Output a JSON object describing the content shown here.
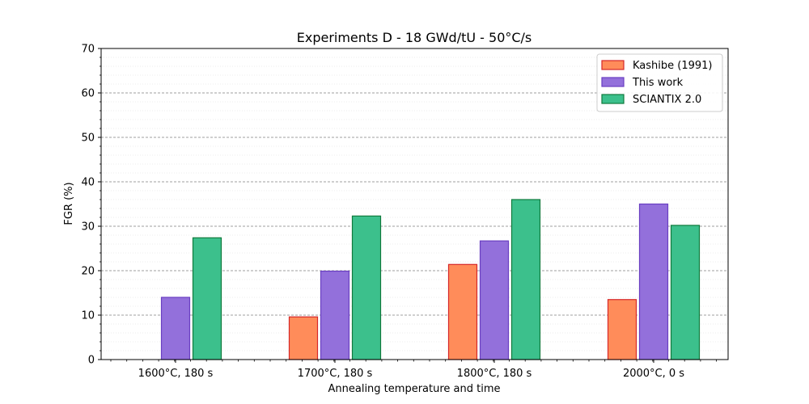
{
  "chart_data": {
    "type": "bar",
    "title": "Experiments D - 18 GWd/tU - 50°C/s",
    "xlabel": "Annealing temperature and time",
    "ylabel": "FGR (%)",
    "ylim": [
      0,
      70
    ],
    "yticks": [
      0,
      10,
      20,
      30,
      40,
      50,
      60,
      70
    ],
    "grid": "horizontal dashed major, dotted minor",
    "legend_position": "top-right",
    "categories": [
      "1600°C, 180 s",
      "1700°C, 180 s",
      "1800°C, 180 s",
      "2000°C, 0 s"
    ],
    "series": [
      {
        "name": "Kashibe (1991)",
        "values": [
          0,
          9.6,
          21.4,
          13.5
        ],
        "fill": "#ff8c5a",
        "stroke": "#d62728"
      },
      {
        "name": "This work",
        "values": [
          14.0,
          19.9,
          26.7,
          35.0
        ],
        "fill": "#9370db",
        "stroke": "#6a3fc2"
      },
      {
        "name": "SCIANTIX 2.0",
        "values": [
          27.4,
          32.3,
          36.0,
          30.2
        ],
        "fill": "#3cc08c",
        "stroke": "#0f7a3c"
      }
    ]
  }
}
